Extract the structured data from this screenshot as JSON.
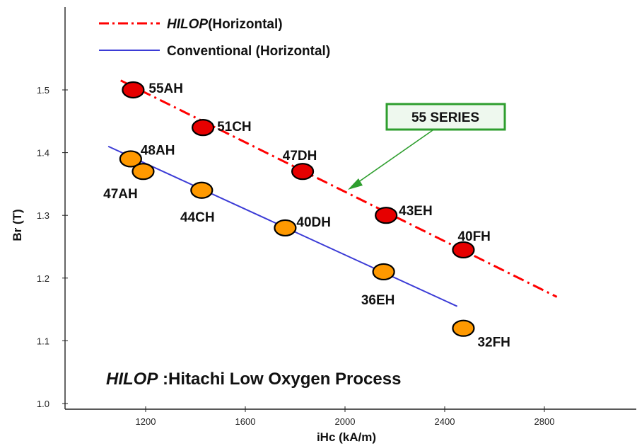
{
  "chart_data": {
    "type": "scatter",
    "xlabel": "iHc  (kA/m)",
    "ylabel": "Br (T)",
    "xlim": [
      1000,
      2900
    ],
    "ylim": [
      1.0,
      1.6
    ],
    "xticks": [
      1200,
      1600,
      2000,
      2400,
      2800
    ],
    "yticks": [
      1.0,
      1.1,
      1.2,
      1.3,
      1.4,
      1.5
    ],
    "ytick_labels": [
      "1.0",
      "1.1",
      "1.2",
      "1.3",
      "1.4",
      "1.5"
    ],
    "grid": false,
    "legend_position": "top-left",
    "legend": [
      {
        "prefix_italic": "HILOP",
        "text": "(Horizontal)",
        "style": "dash-dot",
        "color": "#ff0000"
      },
      {
        "prefix_italic": "",
        "text": "Conventional (Horizontal)",
        "style": "solid",
        "color": "#3b3bd6"
      }
    ],
    "series": [
      {
        "name": "HILOP (Horizontal)",
        "marker_color": "#e60000",
        "points": [
          {
            "x": 1150,
            "y": 1.5,
            "label": "55AH"
          },
          {
            "x": 1430,
            "y": 1.44,
            "label": "51CH"
          },
          {
            "x": 1830,
            "y": 1.37,
            "label": "47DH"
          },
          {
            "x": 2165,
            "y": 1.3,
            "label": "43EH"
          },
          {
            "x": 2475,
            "y": 1.245,
            "label": "40FH"
          }
        ],
        "trend": [
          {
            "x": 1100,
            "y": 1.515
          },
          {
            "x": 2850,
            "y": 1.17
          }
        ]
      },
      {
        "name": "Conventional (Horizontal)",
        "marker_color": "#ff9900",
        "points": [
          {
            "x": 1140,
            "y": 1.39,
            "label": "48AH"
          },
          {
            "x": 1190,
            "y": 1.37,
            "label": "47AH"
          },
          {
            "x": 1425,
            "y": 1.34,
            "label": "44CH"
          },
          {
            "x": 1760,
            "y": 1.28,
            "label": "40DH"
          },
          {
            "x": 2155,
            "y": 1.21,
            "label": "36EH"
          },
          {
            "x": 2475,
            "y": 1.12,
            "label": "32FH"
          }
        ],
        "trend": [
          {
            "x": 1050,
            "y": 1.41
          },
          {
            "x": 2450,
            "y": 1.155
          }
        ]
      }
    ],
    "annotations": {
      "callout": {
        "text": "55 SERIES",
        "border_color": "#2e9e2e",
        "fill": "#eef8ee",
        "arrow_color": "#2e9e2e"
      },
      "note_italic": "HILOP",
      "note_rest": " :Hitachi Low Oxygen Process"
    }
  }
}
